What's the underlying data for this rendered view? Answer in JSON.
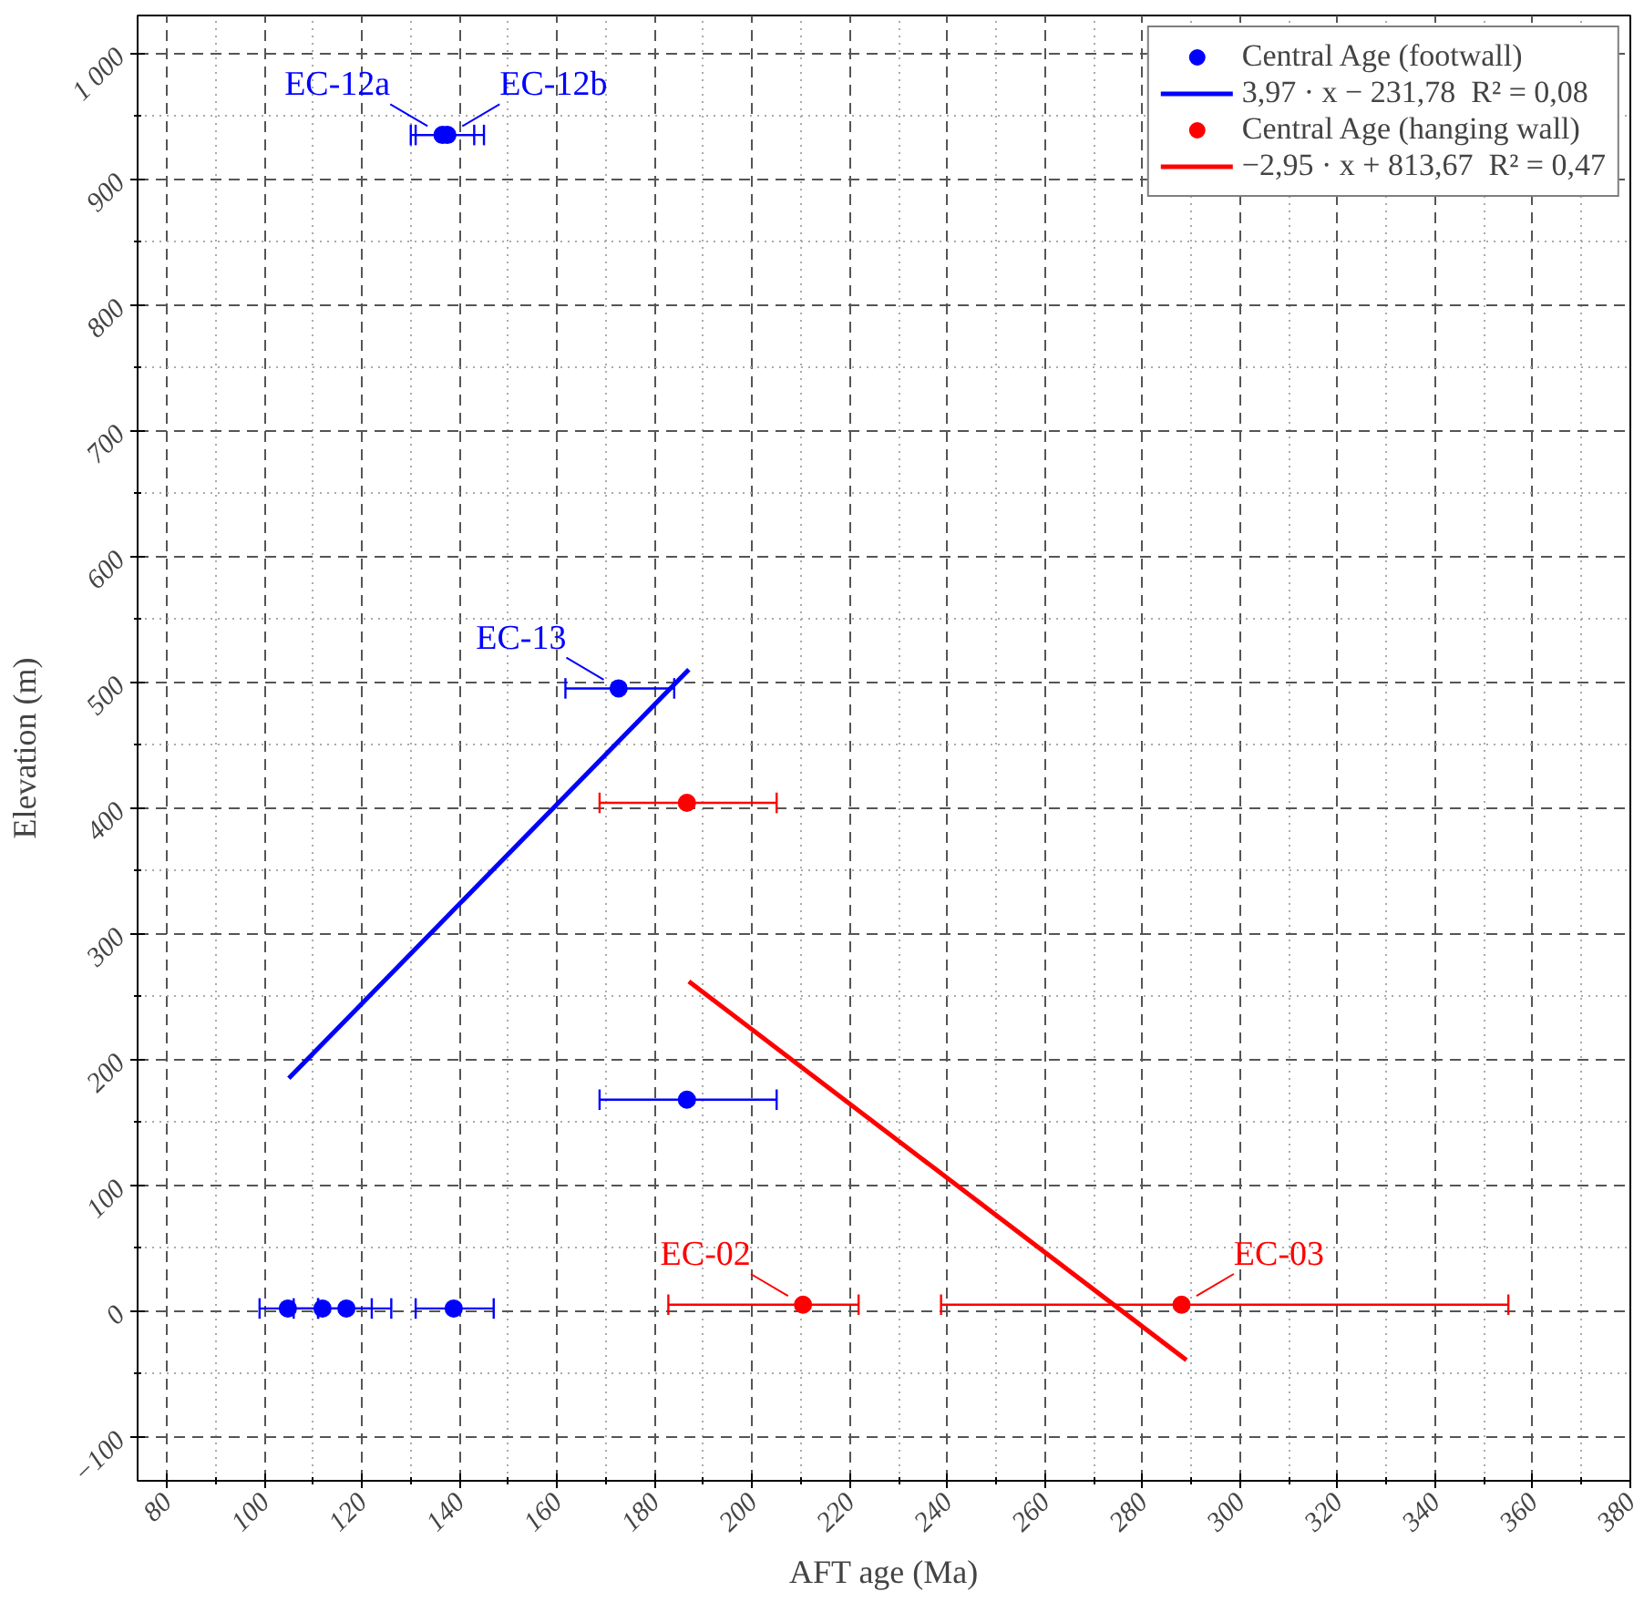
{
  "chart_data": {
    "type": "scatter",
    "xlabel": "AFT age (Ma)",
    "ylabel": "Elevation (m)",
    "xlim": [
      74,
      380
    ],
    "ylim": [
      -135,
      1030
    ],
    "xticks": [
      80,
      100,
      120,
      140,
      160,
      180,
      200,
      220,
      240,
      260,
      280,
      300,
      320,
      340,
      360,
      380
    ],
    "yticks": [
      {
        "value": -100,
        "label": "−100"
      },
      0,
      100,
      200,
      300,
      400,
      500,
      600,
      700,
      800,
      {
        "value": 1000,
        "label": "1 000"
      },
      900
    ],
    "grid": true,
    "legend": "top right",
    "marker": "circle",
    "series": [
      {
        "name": "Central Age (footwall)",
        "color": "#0000ff",
        "x": [
          136.5,
          137.5,
          172.6,
          186.6,
          104.8,
          111.9,
          116.8,
          138.8
        ],
        "values": [
          935,
          935,
          495,
          168,
          2,
          2,
          2,
          2
        ],
        "xerrors": [
          [
            130,
            145
          ],
          [
            131,
            143
          ],
          [
            161.7,
            184
          ],
          [
            168.7,
            205
          ],
          [
            99,
            111
          ],
          [
            106,
            122
          ],
          [
            111,
            126
          ],
          [
            131,
            147
          ]
        ]
      },
      {
        "name": "3,97 · x − 231,78  R² = 0,08",
        "type": "line",
        "marker": "none",
        "color": "#0000ff",
        "x": [
          105,
          187
        ],
        "values": [
          185,
          510
        ]
      },
      {
        "name": "Central Age (hanging wall)",
        "color": "#ff0000",
        "x": [
          186.6,
          210.4,
          288
        ],
        "values": [
          404,
          5,
          5
        ],
        "xerrors": [
          [
            168.7,
            205
          ],
          [
            182.8,
            221.8
          ],
          [
            238.7,
            355
          ]
        ]
      },
      {
        "name": "−2,95 · x + 813,67  R² = 0,47",
        "type": "line",
        "marker": "none",
        "color": "#ff0000",
        "x": [
          187,
          289
        ],
        "values": [
          262,
          -39
        ]
      }
    ],
    "annotations": [
      {
        "text": "EC-12a",
        "x": 136.5,
        "y": 935
      },
      {
        "text": "EC-12b",
        "x": 137.5,
        "y": 935
      },
      {
        "text": "EC-13",
        "x": 172.6,
        "y": 495
      },
      {
        "text": "EC-02",
        "x": 210.4,
        "y": 5
      },
      {
        "text": "EC-03",
        "x": 288,
        "y": 5
      }
    ]
  }
}
